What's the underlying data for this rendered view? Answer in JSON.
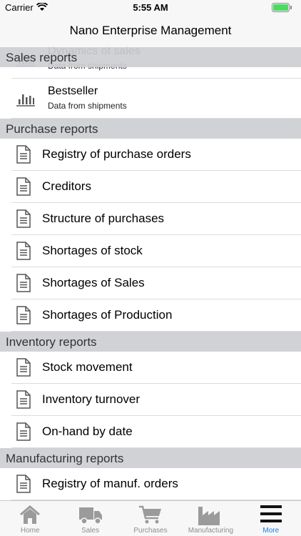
{
  "status_bar": {
    "carrier": "Carrier",
    "time": "5:55 AM"
  },
  "nav_bar": {
    "title": "Nano Enterprise Management"
  },
  "sections": [
    {
      "title": "Sales reports",
      "items": [
        {
          "title": "Dynamics of sales",
          "subtitle": "Data from shipments",
          "icon": "chart"
        },
        {
          "title": "Bestseller",
          "subtitle": "Data from shipments",
          "icon": "chart"
        }
      ]
    },
    {
      "title": "Purchase reports",
      "items": [
        {
          "title": "Registry of purchase orders",
          "icon": "doc"
        },
        {
          "title": "Creditors",
          "icon": "doc"
        },
        {
          "title": "Structure of purchases",
          "icon": "doc"
        },
        {
          "title": "Shortages of stock",
          "icon": "doc"
        },
        {
          "title": "Shortages of Sales",
          "icon": "doc"
        },
        {
          "title": "Shortages of Production",
          "icon": "doc"
        }
      ]
    },
    {
      "title": "Inventory reports",
      "items": [
        {
          "title": "Stock movement",
          "icon": "doc"
        },
        {
          "title": "Inventory turnover",
          "icon": "doc"
        },
        {
          "title": "On-hand by date",
          "icon": "doc"
        }
      ]
    },
    {
      "title": "Manufacturing reports",
      "items": [
        {
          "title": "Registry of manuf. orders",
          "icon": "doc"
        }
      ]
    }
  ],
  "tab_bar": {
    "items": [
      {
        "label": "Home",
        "icon": "home"
      },
      {
        "label": "Sales",
        "icon": "truck"
      },
      {
        "label": "Purchases",
        "icon": "cart"
      },
      {
        "label": "Manufacturing",
        "icon": "factory"
      },
      {
        "label": "More",
        "icon": "menu"
      }
    ],
    "active": 4
  }
}
